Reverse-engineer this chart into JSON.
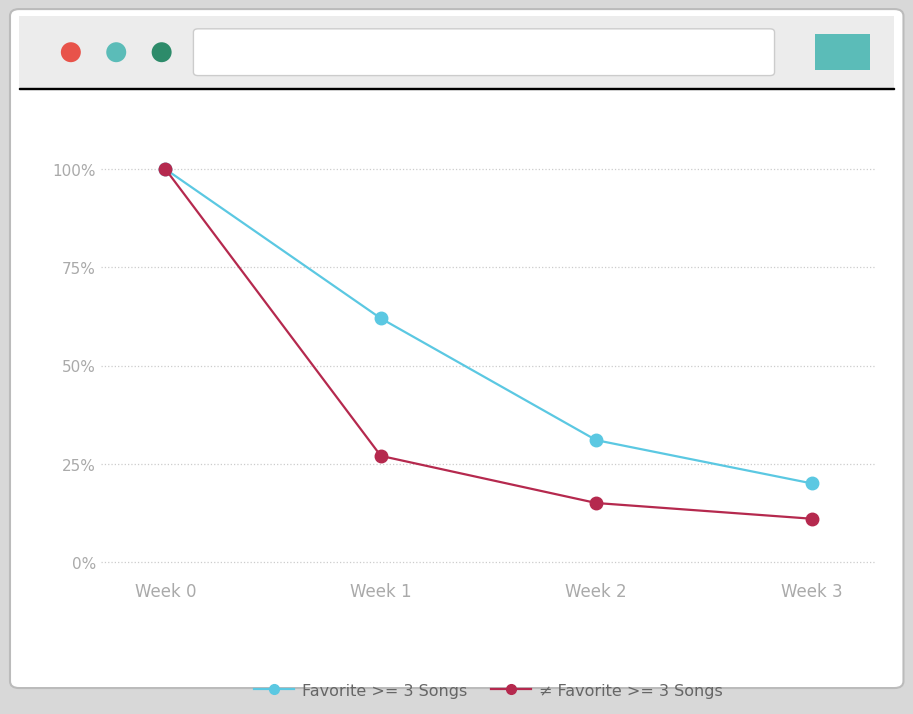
{
  "x_labels": [
    "Week 0",
    "Week 1",
    "Week 2",
    "Week 3"
  ],
  "x_values": [
    0,
    1,
    2,
    3
  ],
  "blue_values": [
    1.0,
    0.62,
    0.31,
    0.2
  ],
  "red_values": [
    1.0,
    0.27,
    0.15,
    0.11
  ],
  "blue_color": "#5BC8E2",
  "red_color": "#B5294E",
  "yticks": [
    0,
    0.25,
    0.5,
    0.75,
    1.0
  ],
  "ytick_labels": [
    "0%",
    "25%",
    "50%",
    "75%",
    "100%"
  ],
  "ylim": [
    -0.04,
    1.1
  ],
  "xlim": [
    -0.3,
    3.3
  ],
  "bg_color": "#FFFFFF",
  "outer_bg_color": "#D8D8D8",
  "chrome_bg": "#ECECEC",
  "legend_label_blue": "Favorite >= 3 Songs",
  "legend_label_red": "≠ Favorite >= 3 Songs",
  "grid_color": "#CCCCCC",
  "marker_size": 9,
  "line_width": 1.6,
  "tick_color": "#AAAAAA",
  "label_fontsize": 12,
  "tick_fontsize": 11,
  "btn_red": "#E8534A",
  "btn_teal": "#5BBCB8",
  "btn_green": "#2D8B6A",
  "url_bar_color": "#FFFFFF",
  "refresh_color": "#5BBCB8"
}
